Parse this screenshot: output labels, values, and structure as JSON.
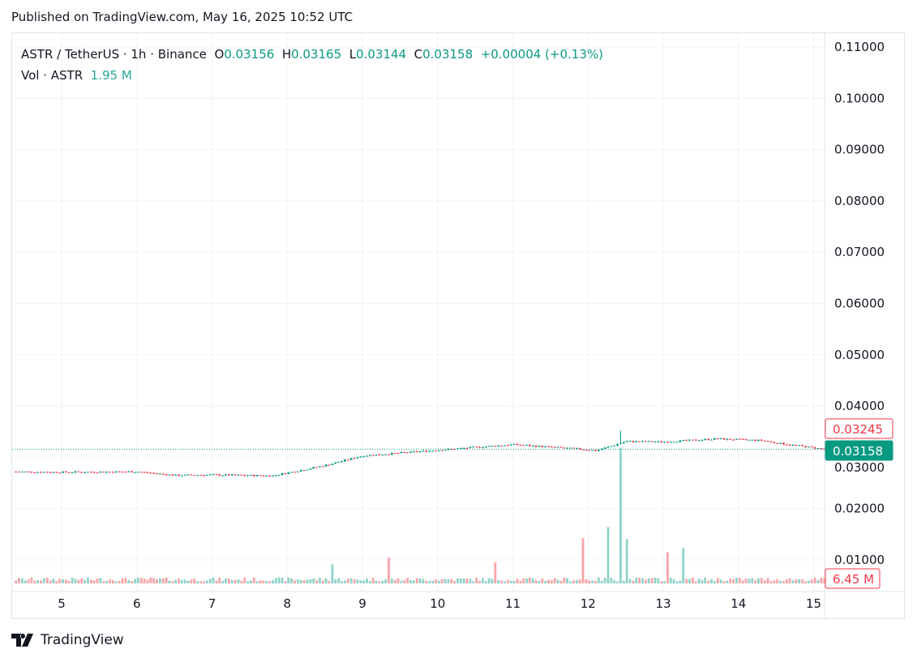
{
  "header": {
    "published": "Published on TradingView.com, May 16, 2025 10:52 UTC"
  },
  "legend": {
    "symbol": "ASTR / TetherUS · 1h · Binance",
    "o_label": "O",
    "o": "0.03156",
    "h_label": "H",
    "h": "0.03165",
    "l_label": "L",
    "l": "0.03144",
    "c_label": "C",
    "c": "0.03158",
    "change": "+0.00004 (+0.13%)",
    "vol_label": "Vol · ASTR",
    "vol": "1.95 M"
  },
  "colors": {
    "up": "#089981",
    "down": "#f23645",
    "vol_up": "#8fd3c9",
    "vol_down": "#f7a5a9",
    "grid": "#f0f3fa"
  },
  "brand": {
    "name": "TradingView"
  },
  "chart_data": {
    "type": "candlestick",
    "interval": "1h",
    "ylim": [
      0.005,
      0.115
    ],
    "y_ticks": [
      "0.11000",
      "0.10000",
      "0.09000",
      "0.08000",
      "0.07000",
      "0.06000",
      "0.05000",
      "0.04000",
      "0.03000",
      "0.02000",
      "0.01000"
    ],
    "x_ticks": [
      "5",
      "6",
      "7",
      "8",
      "9",
      "10",
      "11",
      "12",
      "13",
      "14",
      "15"
    ],
    "price_path": [
      [
        4.35,
        0.0272
      ],
      [
        5,
        0.0271
      ],
      [
        6,
        0.0272
      ],
      [
        6.5,
        0.0265
      ],
      [
        7,
        0.0266
      ],
      [
        7.8,
        0.0264
      ],
      [
        8.5,
        0.0284
      ],
      [
        9,
        0.0303
      ],
      [
        10,
        0.0314
      ],
      [
        11,
        0.0325
      ],
      [
        11.9,
        0.0316
      ],
      [
        12.1,
        0.0313
      ],
      [
        12.4,
        0.0326
      ],
      [
        12.5,
        0.0331
      ],
      [
        13,
        0.033
      ],
      [
        13.7,
        0.0336
      ],
      [
        14.3,
        0.0333
      ],
      [
        14.5,
        0.0328
      ],
      [
        15.15,
        0.03158
      ]
    ],
    "spike_high": {
      "day": 12.45,
      "price": 0.0352
    },
    "volume_spikes_m": [
      [
        8.6,
        19
      ],
      [
        9.35,
        26
      ],
      [
        10.75,
        21
      ],
      [
        11.95,
        45
      ],
      [
        12.25,
        56
      ],
      [
        12.45,
        135
      ],
      [
        12.5,
        44
      ],
      [
        13.05,
        31
      ],
      [
        13.25,
        35
      ]
    ],
    "last_price": "0.03158",
    "prev_marker": "0.03245",
    "last_volume": "6.45 M"
  }
}
